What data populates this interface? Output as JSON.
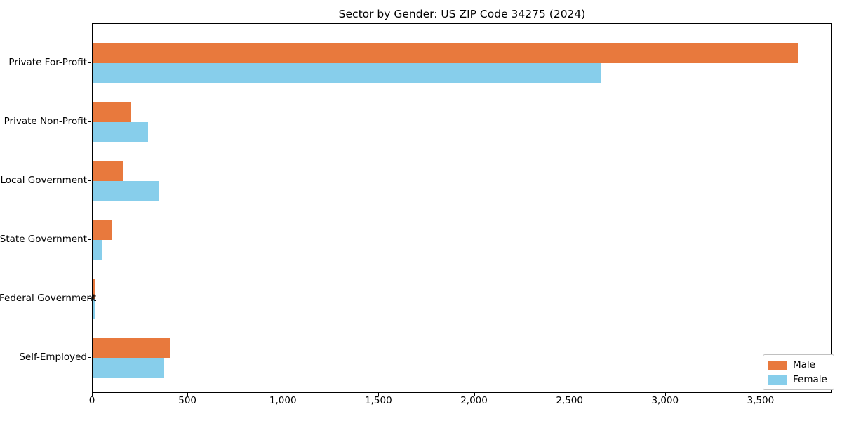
{
  "chart_data": {
    "type": "bar",
    "orientation": "horizontal",
    "title": "Sector by Gender: US ZIP Code 34275 (2024)",
    "categories": [
      "Private For-Profit",
      "Private Non-Profit",
      "Local Government",
      "State Government",
      "Federal Government",
      "Self-Employed"
    ],
    "series": [
      {
        "name": "Male",
        "color": "#e8793d",
        "values": [
          3690,
          200,
          160,
          100,
          15,
          405
        ]
      },
      {
        "name": "Female",
        "color": "#87ceeb",
        "values": [
          2660,
          290,
          350,
          48,
          13,
          375
        ]
      }
    ],
    "xlabel": "",
    "ylabel": "",
    "xlim": [
      0,
      3875
    ],
    "xticks": [
      0,
      500,
      1000,
      1500,
      2000,
      2500,
      3000,
      3500
    ],
    "xtick_labels": [
      "0",
      "500",
      "1,000",
      "1,500",
      "2,000",
      "2,500",
      "3,000",
      "3,500"
    ],
    "legend": {
      "position": "lower right",
      "entries": [
        "Male",
        "Female"
      ]
    },
    "grid": false,
    "axis_color": "#000000",
    "background_color": "#ffffff"
  }
}
